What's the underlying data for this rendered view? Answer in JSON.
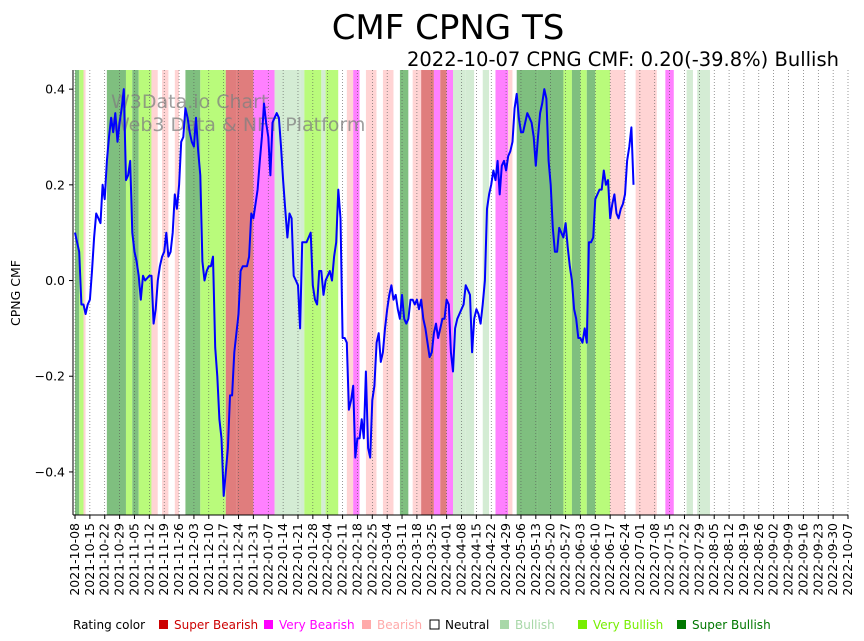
{
  "chart_data": {
    "type": "line",
    "title": "CMF CPNG TS",
    "subtitle": "2022-10-07 CPNG CMF: 0.20(-39.8%) Bullish",
    "xlabel": "",
    "ylabel": "CPNG CMF",
    "ylim": [
      -0.49,
      0.44
    ],
    "yticks": [
      0.4,
      0.2,
      0.0,
      -0.2,
      -0.4
    ],
    "ytick_labels": [
      "0.4",
      "0.2",
      "0.0",
      "−0.2",
      "−0.4"
    ],
    "x_start": "2021-10-08",
    "x_end": "2022-10-07",
    "xtick_labels": [
      "2021-10-08",
      "2021-10-15",
      "2021-10-22",
      "2021-10-29",
      "2021-11-05",
      "2021-11-12",
      "2021-11-19",
      "2021-11-26",
      "2021-12-03",
      "2021-12-10",
      "2021-12-17",
      "2021-12-24",
      "2021-12-31",
      "2022-01-07",
      "2022-01-14",
      "2022-01-21",
      "2022-01-28",
      "2022-02-04",
      "2022-02-11",
      "2022-02-18",
      "2022-02-25",
      "2022-03-04",
      "2022-03-11",
      "2022-03-18",
      "2022-03-25",
      "2022-04-01",
      "2022-04-08",
      "2022-04-15",
      "2022-04-22",
      "2022-04-29",
      "2022-05-06",
      "2022-05-13",
      "2022-05-20",
      "2022-05-27",
      "2022-06-03",
      "2022-06-10",
      "2022-06-17",
      "2022-06-24",
      "2022-07-01",
      "2022-07-08",
      "2022-07-15",
      "2022-07-22",
      "2022-07-29",
      "2022-08-05",
      "2022-08-12",
      "2022-08-19",
      "2022-08-26",
      "2022-09-02",
      "2022-09-09",
      "2022-09-16",
      "2022-09-23",
      "2022-09-30",
      "2022-10-07"
    ],
    "series": [
      {
        "name": "CPNG CMF",
        "color": "#0000ff",
        "start_day": 0,
        "step_days": 1,
        "values": [
          0.1,
          0.08,
          0.06,
          -0.05,
          -0.05,
          -0.07,
          -0.05,
          -0.04,
          0.02,
          0.09,
          0.14,
          0.13,
          0.12,
          0.2,
          0.17,
          0.25,
          0.3,
          0.34,
          0.31,
          0.35,
          0.29,
          0.33,
          0.36,
          0.4,
          0.21,
          0.22,
          0.25,
          0.1,
          0.06,
          0.04,
          0.01,
          -0.04,
          0.01,
          0.0,
          0.005,
          0.01,
          0.01,
          -0.09,
          -0.06,
          0.0,
          0.03,
          0.05,
          0.06,
          0.1,
          0.05,
          0.06,
          0.1,
          0.18,
          0.15,
          0.2,
          0.29,
          0.3,
          0.36,
          0.34,
          0.31,
          0.29,
          0.28,
          0.34,
          0.27,
          0.22,
          0.04,
          0.0,
          0.02,
          0.03,
          0.03,
          0.05,
          -0.14,
          -0.2,
          -0.29,
          -0.33,
          -0.45,
          -0.4,
          -0.35,
          -0.24,
          -0.24,
          -0.15,
          -0.11,
          -0.07,
          0.02,
          0.03,
          0.03,
          0.03,
          0.05,
          0.14,
          0.13,
          0.16,
          0.19,
          0.25,
          0.3,
          0.37,
          0.33,
          0.3,
          0.22,
          0.33,
          0.34,
          0.35,
          0.34,
          0.28,
          0.21,
          0.15,
          0.09,
          0.14,
          0.13,
          0.01,
          0.0,
          -0.01,
          -0.1,
          0.08,
          0.08,
          0.08,
          0.09,
          0.1,
          -0.01,
          -0.04,
          -0.05,
          0.02,
          0.02,
          -0.03,
          0.0,
          0.01,
          0.02,
          0.0,
          0.05,
          0.08,
          0.19,
          0.13,
          -0.12,
          -0.12,
          -0.13,
          -0.27,
          -0.25,
          -0.22,
          -0.37,
          -0.33,
          -0.33,
          -0.29,
          -0.33,
          -0.19,
          -0.35,
          -0.37,
          -0.25,
          -0.22,
          -0.13,
          -0.11,
          -0.17,
          -0.15,
          -0.1,
          -0.06,
          -0.03,
          -0.01,
          -0.04,
          -0.03,
          -0.06,
          -0.08,
          -0.03,
          -0.08,
          -0.09,
          -0.08,
          -0.04,
          -0.04,
          -0.05,
          -0.04,
          -0.06,
          -0.04,
          -0.08,
          -0.1,
          -0.13,
          -0.16,
          -0.15,
          -0.11,
          -0.09,
          -0.12,
          -0.1,
          -0.08,
          -0.08,
          -0.04,
          -0.05,
          -0.15,
          -0.19,
          -0.1,
          -0.08,
          -0.07,
          -0.06,
          -0.05,
          -0.01,
          -0.02,
          -0.03,
          -0.15,
          -0.08,
          -0.06,
          -0.07,
          -0.09,
          -0.05,
          0.0,
          0.15,
          0.18,
          0.2,
          0.23,
          0.21,
          0.25,
          0.18,
          0.24,
          0.25,
          0.23,
          0.26,
          0.27,
          0.29,
          0.36,
          0.39,
          0.34,
          0.31,
          0.31,
          0.33,
          0.35,
          0.34,
          0.33,
          0.3,
          0.24,
          0.3,
          0.35,
          0.37,
          0.4,
          0.38,
          0.25,
          0.2,
          0.11,
          0.06,
          0.06,
          0.11,
          0.1,
          0.09,
          0.12,
          0.07,
          0.03,
          0.0,
          -0.06,
          -0.08,
          -0.12,
          -0.12,
          -0.13,
          -0.1,
          -0.13,
          0.08,
          0.08,
          0.09,
          0.17,
          0.18,
          0.19,
          0.19,
          0.23,
          0.2,
          0.21,
          0.13,
          0.16,
          0.18,
          0.14,
          0.13,
          0.15,
          0.16,
          0.18,
          0.25,
          0.28,
          0.32,
          0.2
        ]
      }
    ],
    "bands": [
      [
        0,
        2,
        "Super Bullish"
      ],
      [
        2,
        4,
        "Very Bullish"
      ],
      [
        4,
        5,
        "Bearish"
      ],
      [
        5,
        8,
        "Neutral"
      ],
      [
        8,
        15,
        "Neutral"
      ],
      [
        15,
        24,
        "Super Bullish"
      ],
      [
        24,
        27,
        "Very Bullish"
      ],
      [
        27,
        30,
        "Super Bullish"
      ],
      [
        30,
        36,
        "Very Bullish"
      ],
      [
        36,
        39,
        "Bearish"
      ],
      [
        39,
        41,
        "Neutral"
      ],
      [
        41,
        44,
        "Bearish"
      ],
      [
        44,
        47,
        "Neutral"
      ],
      [
        47,
        49,
        "Bearish"
      ],
      [
        49,
        52,
        "Neutral"
      ],
      [
        52,
        59,
        "Super Bullish"
      ],
      [
        59,
        71,
        "Very Bullish"
      ],
      [
        71,
        76,
        "Super Bearish"
      ],
      [
        76,
        84,
        "Super Bearish"
      ],
      [
        84,
        94,
        "Very Bearish"
      ],
      [
        94,
        106,
        "Bullish"
      ],
      [
        106,
        108,
        "Bullish"
      ],
      [
        108,
        116,
        "Very Bullish"
      ],
      [
        116,
        118,
        "Bullish"
      ],
      [
        118,
        124,
        "Very Bullish"
      ],
      [
        124,
        128,
        "Neutral"
      ],
      [
        128,
        131,
        "Bearish"
      ],
      [
        131,
        134,
        "Very Bearish"
      ],
      [
        134,
        137,
        "Neutral"
      ],
      [
        137,
        142,
        "Bearish"
      ],
      [
        142,
        145,
        "Neutral"
      ],
      [
        145,
        150,
        "Bearish"
      ],
      [
        150,
        153,
        "Neutral"
      ],
      [
        153,
        157,
        "Super Bullish"
      ],
      [
        157,
        159,
        "Neutral"
      ],
      [
        159,
        163,
        "Bearish"
      ],
      [
        163,
        169,
        "Super Bearish"
      ],
      [
        169,
        172,
        "Very Bearish"
      ],
      [
        172,
        175,
        "Super Bearish"
      ],
      [
        175,
        178,
        "Very Bearish"
      ],
      [
        178,
        184,
        "Bullish"
      ],
      [
        184,
        188,
        "Bullish"
      ],
      [
        188,
        192,
        "Neutral"
      ],
      [
        192,
        195,
        "Bullish"
      ],
      [
        195,
        198,
        "Neutral"
      ],
      [
        198,
        204,
        "Very Bearish"
      ],
      [
        204,
        206,
        "Bearish"
      ],
      [
        206,
        208,
        "Neutral"
      ],
      [
        208,
        218,
        "Super Bullish"
      ],
      [
        218,
        230,
        "Super Bullish"
      ],
      [
        230,
        234,
        "Very Bullish"
      ],
      [
        234,
        238,
        "Super Bullish"
      ],
      [
        238,
        241,
        "Very Bullish"
      ],
      [
        241,
        245,
        "Super Bullish"
      ],
      [
        245,
        252,
        "Very Bullish"
      ],
      [
        252,
        259,
        "Bearish"
      ],
      [
        259,
        264,
        "Neutral"
      ],
      [
        264,
        274,
        "Bearish"
      ],
      [
        274,
        278,
        "Neutral"
      ],
      [
        278,
        282,
        "Very Bearish"
      ],
      [
        282,
        288,
        "Neutral"
      ],
      [
        288,
        291,
        "Bullish"
      ],
      [
        291,
        293,
        "Neutral"
      ],
      [
        293,
        299,
        "Bullish"
      ]
    ],
    "legend": {
      "label": "Rating color",
      "items": [
        {
          "name": "Super Bearish",
          "color": "#cc0000",
          "band": "#e07d7d"
        },
        {
          "name": "Very Bearish",
          "color": "#ff00ff",
          "band": "#ff80ff"
        },
        {
          "name": "Bearish",
          "color": "#ffaaaa",
          "band": "#ffd4d4"
        },
        {
          "name": "Neutral",
          "color": "#000000",
          "band": "#ffffff"
        },
        {
          "name": "Bullish",
          "color": "#a8d8a8",
          "band": "#d4ecd4"
        },
        {
          "name": "Very Bullish",
          "color": "#77ee00",
          "band": "#b9fb7b"
        },
        {
          "name": "Super Bullish",
          "color": "#007700",
          "band": "#7fbf7f"
        }
      ]
    },
    "watermark": [
      "W3Data.io Chart",
      "Web3 Data & NFT Platform"
    ]
  }
}
